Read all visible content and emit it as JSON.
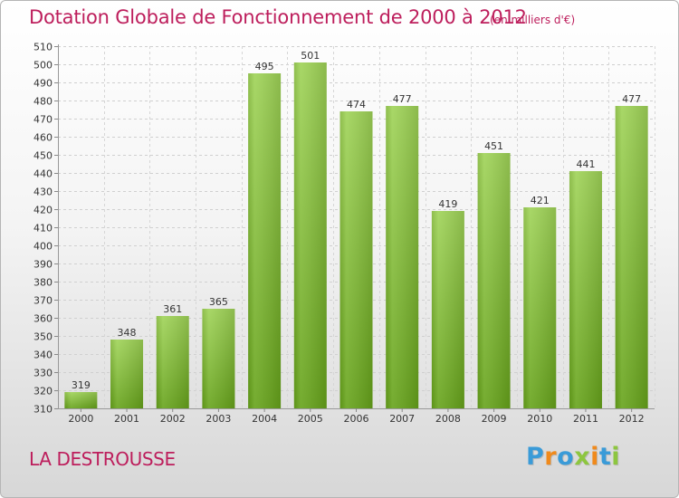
{
  "header": {
    "title": "Dotation Globale de Fonctionnement de 2000 à 2012",
    "subtitle": "(en milliers d'€)"
  },
  "footer": {
    "place": "LA DESTROUSSE",
    "brand_letters": [
      "P",
      "r",
      "o",
      "x",
      "i",
      "t",
      "i"
    ],
    "brand_colors": [
      "#3a9bd8",
      "#f08a1c",
      "#3a9bd8",
      "#8dc63f",
      "#f08a1c",
      "#3a9bd8",
      "#8dc63f"
    ]
  },
  "colors": {
    "bar_top": "#9fd357",
    "bar_bottom": "#66a31a",
    "text": "#bd1e5c",
    "tick_text": "#333333"
  },
  "chart_data": {
    "type": "bar",
    "title": "Dotation Globale de Fonctionnement de 2000 à 2012",
    "subtitle": "(en milliers d'€)",
    "xlabel": "",
    "ylabel": "",
    "categories": [
      "2000",
      "2001",
      "2002",
      "2003",
      "2004",
      "2005",
      "2006",
      "2007",
      "2008",
      "2009",
      "2010",
      "2011",
      "2012"
    ],
    "values": [
      319,
      348,
      361,
      365,
      495,
      501,
      474,
      477,
      419,
      451,
      421,
      441,
      477
    ],
    "ylim": [
      310,
      510
    ],
    "ytick_step": 10,
    "grid": true,
    "data_labels": true
  }
}
